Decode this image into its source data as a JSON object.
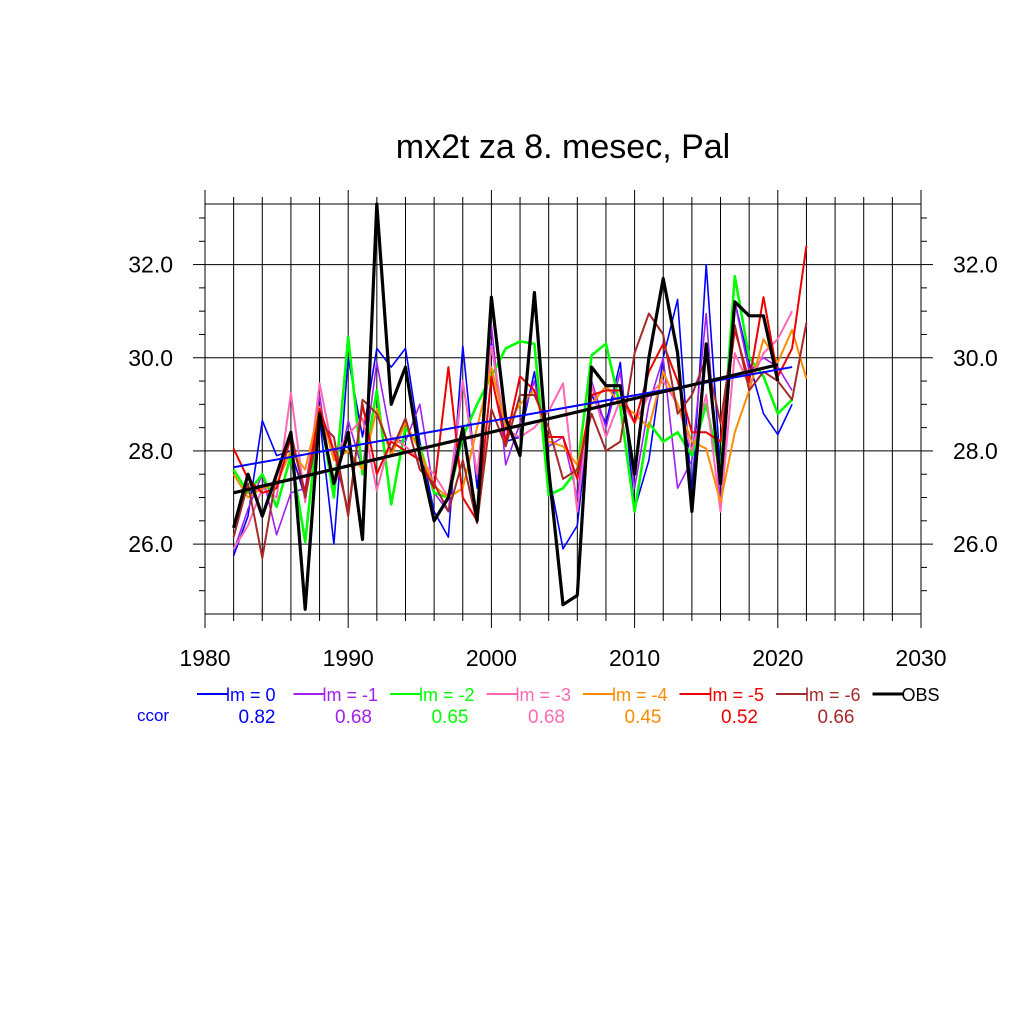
{
  "chart_data": {
    "type": "line",
    "title": "mx2t za 8. mesec, Pal",
    "xlim": [
      1980,
      2030
    ],
    "ylim": [
      24.5,
      33.3
    ],
    "x_ticks": [
      "1980",
      "1990",
      "2000",
      "2010",
      "2020",
      "2030"
    ],
    "y_ticks": [
      "26.0",
      "28.0",
      "30.0",
      "32.0"
    ],
    "grid": true,
    "ccor_label": "ccor",
    "x": [
      1982,
      1983,
      1984,
      1985,
      1986,
      1987,
      1988,
      1989,
      1990,
      1991,
      1992,
      1993,
      1994,
      1995,
      1996,
      1997,
      1998,
      1999,
      2000,
      2001,
      2002,
      2003,
      2004,
      2005,
      2006,
      2007,
      2008,
      2009,
      2010,
      2011,
      2012,
      2013,
      2014,
      2015,
      2016,
      2017,
      2018,
      2019,
      2020,
      2021,
      2022
    ],
    "series": [
      {
        "name": "lm = 0",
        "ccor": "0.82",
        "color": "#0000ff",
        "values": [
          25.75,
          26.6,
          28.65,
          27.9,
          28.0,
          27.0,
          28.7,
          26.0,
          30.0,
          28.3,
          30.2,
          29.8,
          30.2,
          28.2,
          26.7,
          26.15,
          30.25,
          27.2,
          30.3,
          28.2,
          28.3,
          29.7,
          27.5,
          25.9,
          26.4,
          29.2,
          28.6,
          29.9,
          26.75,
          27.8,
          30.0,
          31.25,
          27.0,
          32.0,
          27.6,
          31.2,
          29.9,
          28.8,
          28.35,
          29.0,
          null
        ],
        "trend": [
          27.65,
          29.8
        ]
      },
      {
        "name": "lm = -1",
        "ccor": "0.68",
        "color": "#a020f0",
        "values": [
          25.85,
          26.75,
          27.5,
          26.2,
          27.1,
          27.2,
          29.2,
          27.1,
          28.65,
          27.6,
          29.9,
          28.25,
          28.2,
          29.0,
          27.1,
          26.7,
          29.5,
          27.4,
          30.7,
          27.7,
          28.6,
          29.5,
          28.1,
          28.3,
          27.0,
          29.5,
          28.5,
          29.7,
          27.2,
          29.0,
          30.0,
          27.2,
          27.8,
          30.95,
          26.8,
          31.2,
          29.7,
          30.0,
          29.8,
          29.3,
          null
        ],
        "trend": null
      },
      {
        "name": "lm = -2",
        "ccor": "0.65",
        "color": "#00ff00",
        "values": [
          27.6,
          27.1,
          27.5,
          26.8,
          27.9,
          26.05,
          28.9,
          27.0,
          30.45,
          27.5,
          29.3,
          26.85,
          28.5,
          28.1,
          27.1,
          27.0,
          28.3,
          29.0,
          29.6,
          30.2,
          30.35,
          30.3,
          27.05,
          27.2,
          27.6,
          30.05,
          30.3,
          28.95,
          26.7,
          28.6,
          28.2,
          28.4,
          27.9,
          29.0,
          27.5,
          31.75,
          30.0,
          29.6,
          28.8,
          29.1,
          null
        ],
        "trend": null
      },
      {
        "name": "lm = -3",
        "ccor": "0.68",
        "color": "#ff69b4",
        "values": [
          25.9,
          26.4,
          27.2,
          27.0,
          29.25,
          26.9,
          29.45,
          27.9,
          28.35,
          28.7,
          27.15,
          28.3,
          28.1,
          27.8,
          27.5,
          27.0,
          29.5,
          27.5,
          30.25,
          28.45,
          28.3,
          28.5,
          28.85,
          29.45,
          26.7,
          29.4,
          28.3,
          29.1,
          28.6,
          29.2,
          29.5,
          29.0,
          28.0,
          29.2,
          26.7,
          30.1,
          29.4,
          30.1,
          30.4,
          31.0,
          null
        ],
        "trend": null
      },
      {
        "name": "lm = -4",
        "ccor": "0.45",
        "color": "#ff8c00",
        "values": [
          27.5,
          27.0,
          27.2,
          27.3,
          28.0,
          27.6,
          28.95,
          27.8,
          28.0,
          27.6,
          28.9,
          27.9,
          28.6,
          28.0,
          27.25,
          27.0,
          27.2,
          28.5,
          29.8,
          28.5,
          29.0,
          29.3,
          28.2,
          28.1,
          27.7,
          29.0,
          29.4,
          29.0,
          28.8,
          28.5,
          29.7,
          29.0,
          28.2,
          28.05,
          26.9,
          28.4,
          29.3,
          30.4,
          29.9,
          30.6,
          29.55
        ],
        "trend": null
      },
      {
        "name": "lm = -5",
        "ccor": "0.52",
        "color": "#ee0000",
        "values": [
          28.05,
          27.4,
          27.1,
          27.2,
          28.3,
          27.1,
          28.9,
          28.0,
          26.7,
          29.0,
          27.5,
          28.2,
          28.0,
          27.8,
          27.2,
          29.8,
          27.0,
          26.5,
          29.6,
          28.2,
          29.6,
          29.3,
          28.3,
          28.3,
          27.4,
          29.2,
          29.3,
          29.3,
          28.6,
          29.7,
          30.3,
          29.5,
          28.4,
          28.4,
          28.2,
          30.6,
          29.5,
          31.3,
          29.6,
          30.2,
          32.4
        ],
        "trend": null
      },
      {
        "name": "lm = -6",
        "ccor": "0.66",
        "color": "#a52a2a",
        "values": [
          26.15,
          27.3,
          25.7,
          27.5,
          28.4,
          27.0,
          28.6,
          28.3,
          26.6,
          29.1,
          28.8,
          28.0,
          28.7,
          27.6,
          27.3,
          26.7,
          27.8,
          26.45,
          28.9,
          28.1,
          29.2,
          29.2,
          28.5,
          27.4,
          27.6,
          28.8,
          28.0,
          28.2,
          30.1,
          30.95,
          30.5,
          28.8,
          29.2,
          30.0,
          28.6,
          30.7,
          29.3,
          29.7,
          29.5,
          29.1,
          30.75
        ],
        "trend": null
      },
      {
        "name": "OBS",
        "ccor": "",
        "color": "#000000",
        "values": [
          26.35,
          27.5,
          26.6,
          27.5,
          28.4,
          24.6,
          28.8,
          27.3,
          28.4,
          26.1,
          33.3,
          29.0,
          29.8,
          27.9,
          26.5,
          27.0,
          28.5,
          26.5,
          31.3,
          28.7,
          27.9,
          31.4,
          27.6,
          24.7,
          24.9,
          29.8,
          29.4,
          29.4,
          27.5,
          30.0,
          31.7,
          30.1,
          26.7,
          30.3,
          27.3,
          31.2,
          30.9,
          30.9,
          29.5,
          null,
          null
        ],
        "trend": [
          27.1,
          29.85
        ]
      }
    ]
  }
}
